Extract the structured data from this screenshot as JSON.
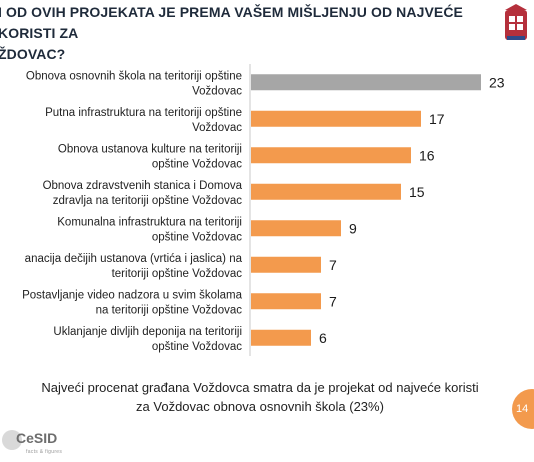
{
  "title": {
    "line1": "I OD OVIH PROJEKATA JE PREMA VAŠEM MIŠLJENJU OD NAJVEĆE KORISTI ZA",
    "line2": "ŽDOVAC?"
  },
  "chart_data": {
    "type": "bar",
    "orientation": "horizontal",
    "categories": [
      [
        "Obnova osnovnih škola na teritoriji opštine",
        "Voždovac"
      ],
      [
        "Putna infrastruktura na teritoriji opštine",
        "Voždovac"
      ],
      [
        "Obnova ustanova kulture na teritoriji",
        "opštine Voždovac"
      ],
      [
        "Obnova zdravstvenih stanica i Domova",
        "zdravlja na teritoriji opštine Voždovac"
      ],
      [
        "Komunalna infrastruktura na teritoriji",
        "opštine Voždovac"
      ],
      [
        "anacija dečijih ustanova (vrtića i jaslica) na",
        "teritoriji opštine Voždovac"
      ],
      [
        "Postavljanje video nadzora u svim školama",
        "na teritoriji opštine Voždovac"
      ],
      [
        "Uklanjanje divljih deponija na teritoriji",
        "opštine Voždovac"
      ]
    ],
    "values": [
      23,
      17,
      16,
      15,
      9,
      7,
      7,
      6
    ],
    "value_labels": [
      "23",
      "17",
      "16",
      "15",
      "9",
      "7",
      "7",
      "6"
    ],
    "colors": [
      "#a6a6a6",
      "#f39a4d",
      "#f39a4d",
      "#f39a4d",
      "#f39a4d",
      "#f39a4d",
      "#f39a4d",
      "#f39a4d"
    ],
    "title": "",
    "xlabel": "",
    "ylabel": "",
    "grid": false,
    "legend": "none"
  },
  "footer": {
    "line1": "Najveći procenat građana Voždovca smatra da je projekat od najveće koristi",
    "line2": "za Voždovac obnova osnovnih škola (23%)"
  },
  "page_number": "14",
  "logo": {
    "text": "CeSID",
    "subtitle": "facts & figures"
  },
  "colors": {
    "accent": "#f39a4d",
    "highlight": "#a6a6a6",
    "axis": "#c8c8c8"
  }
}
